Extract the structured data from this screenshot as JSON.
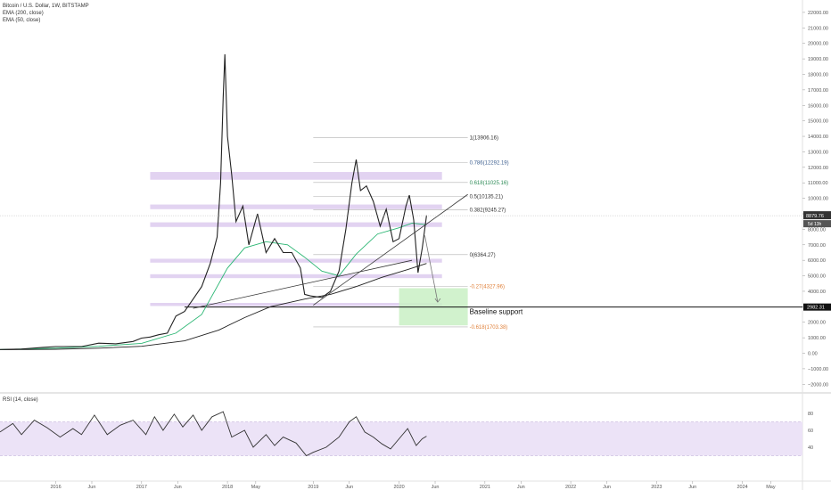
{
  "legend": {
    "title": "Bitcoin / U.S. Dollar, 1W, BITSTAMP",
    "ema200": "EMA (200, close)",
    "ema50": "EMA (50, close)",
    "rsi": "RSI (14, close)"
  },
  "colors": {
    "candle": "#222222",
    "ema50": "#2bb673",
    "ema200": "#222222",
    "zone": "#d8c4ec",
    "green_box": "#c9f0c4",
    "rsi_band": "#ece3f7",
    "rsi_line": "#333333",
    "fib_gray": "#888888",
    "fib_blue": "#3d5f8f",
    "fib_green": "#2e8b57",
    "fib_orange": "#e0803a"
  },
  "price_scale": {
    "ticks": [
      22000,
      21000,
      20000,
      19000,
      18000,
      17000,
      16000,
      15000,
      14000,
      13000,
      12000,
      11000,
      10000,
      9000,
      8000,
      7000,
      6000,
      5000,
      4000,
      3000,
      2000,
      1000,
      0,
      -1000,
      -2000
    ],
    "labels": [
      "22000.00",
      "21000.00",
      "20000.00",
      "19000.00",
      "18000.00",
      "17000.00",
      "16000.00",
      "15000.00",
      "14000.00",
      "13000.00",
      "12000.00",
      "11000.00",
      "10000.00",
      "9000.00",
      "8000.00",
      "7000.00",
      "6000.00",
      "5000.00",
      "4000.00",
      "3000.00",
      "2000.00",
      "1000.00",
      "0.00",
      "−1000.00",
      "−2000.00"
    ],
    "current_price": 8879.76,
    "current_label": "8879.76",
    "countdown_label": "5d 13h",
    "support_label": "2982.31"
  },
  "time_axis": {
    "labels": [
      "2016",
      "Jun",
      "2017",
      "Jun",
      "2018",
      "May",
      "2019",
      "Jun",
      "2020",
      "Jun",
      "2021",
      "Jun",
      "2022",
      "Jun",
      "2023",
      "Jun",
      "2024",
      "May"
    ],
    "positions": [
      2016.0,
      2016.42,
      2017.0,
      2017.42,
      2018.0,
      2018.33,
      2019.0,
      2019.42,
      2020.0,
      2020.42,
      2021.0,
      2021.42,
      2022.0,
      2022.42,
      2023.0,
      2023.42,
      2024.0,
      2024.33
    ]
  },
  "rsi_scale": {
    "ticks": [
      80,
      60,
      40
    ],
    "labels": [
      "80",
      "60",
      "40"
    ],
    "band": [
      30,
      70
    ]
  },
  "fib_levels": [
    {
      "label": "1(13906.16)",
      "value": 13906.16,
      "color": "#333333"
    },
    {
      "label": "0.786(12292.19)",
      "value": 12292.19,
      "color": "#3d5f8f"
    },
    {
      "label": "0.618(11025.16)",
      "value": 11025.16,
      "color": "#2e8b57"
    },
    {
      "label": "0.5(10135.21)",
      "value": 10135.21,
      "color": "#333333"
    },
    {
      "label": "0.382(9245.27)",
      "value": 9245.27,
      "color": "#333333"
    },
    {
      "label": "0(6364.27)",
      "value": 6364.27,
      "color": "#333333"
    },
    {
      "label": "-0.27(4327.96)",
      "value": 4327.96,
      "color": "#e0803a"
    },
    {
      "label": "-0.618(1703.38)",
      "value": 1703.38,
      "color": "#e0803a"
    }
  ],
  "annotation": {
    "baseline_text": "Baseline support",
    "baseline_value": 2982.31
  },
  "chart_data": {
    "type": "line",
    "title": "Bitcoin / U.S. Dollar, 1W, BITSTAMP",
    "xlabel": "",
    "ylabel": "",
    "ylim": [
      -2500,
      22800
    ],
    "xlim": [
      2015.35,
      2024.7
    ],
    "series": [
      {
        "name": "Bitcoin / U.S. Dollar",
        "points": [
          [
            2015.35,
            240
          ],
          [
            2015.6,
            270
          ],
          [
            2015.85,
            380
          ],
          [
            2016.0,
            430
          ],
          [
            2016.3,
            430
          ],
          [
            2016.5,
            650
          ],
          [
            2016.7,
            610
          ],
          [
            2016.9,
            760
          ],
          [
            2017.0,
            980
          ],
          [
            2017.1,
            1050
          ],
          [
            2017.2,
            1200
          ],
          [
            2017.3,
            1300
          ],
          [
            2017.4,
            2400
          ],
          [
            2017.5,
            2700
          ],
          [
            2017.6,
            3500
          ],
          [
            2017.7,
            4300
          ],
          [
            2017.8,
            5800
          ],
          [
            2017.88,
            7500
          ],
          [
            2017.92,
            11000
          ],
          [
            2017.95,
            16500
          ],
          [
            2017.97,
            19300
          ],
          [
            2018.0,
            14000
          ],
          [
            2018.05,
            11500
          ],
          [
            2018.1,
            8500
          ],
          [
            2018.18,
            9500
          ],
          [
            2018.25,
            7000
          ],
          [
            2018.35,
            9000
          ],
          [
            2018.45,
            6500
          ],
          [
            2018.55,
            7400
          ],
          [
            2018.65,
            6500
          ],
          [
            2018.75,
            6500
          ],
          [
            2018.85,
            5500
          ],
          [
            2018.9,
            3800
          ],
          [
            2018.97,
            3700
          ],
          [
            2019.1,
            3600
          ],
          [
            2019.2,
            4000
          ],
          [
            2019.3,
            5300
          ],
          [
            2019.38,
            8000
          ],
          [
            2019.45,
            11000
          ],
          [
            2019.5,
            12500
          ],
          [
            2019.55,
            10500
          ],
          [
            2019.62,
            10800
          ],
          [
            2019.7,
            9800
          ],
          [
            2019.78,
            8200
          ],
          [
            2019.85,
            9300
          ],
          [
            2019.93,
            7200
          ],
          [
            2020.0,
            7400
          ],
          [
            2020.08,
            9500
          ],
          [
            2020.12,
            10200
          ],
          [
            2020.17,
            8600
          ],
          [
            2020.22,
            5200
          ],
          [
            2020.27,
            6800
          ],
          [
            2020.32,
            8900
          ]
        ]
      },
      {
        "name": "EMA (50, close)",
        "points": [
          [
            2015.35,
            240
          ],
          [
            2016.0,
            330
          ],
          [
            2016.5,
            450
          ],
          [
            2017.0,
            640
          ],
          [
            2017.4,
            1300
          ],
          [
            2017.7,
            2500
          ],
          [
            2018.0,
            5500
          ],
          [
            2018.2,
            6800
          ],
          [
            2018.45,
            7200
          ],
          [
            2018.7,
            7000
          ],
          [
            2018.9,
            6200
          ],
          [
            2019.1,
            5300
          ],
          [
            2019.3,
            5000
          ],
          [
            2019.5,
            6400
          ],
          [
            2019.75,
            7700
          ],
          [
            2020.0,
            8100
          ],
          [
            2020.15,
            8400
          ],
          [
            2020.32,
            8300
          ]
        ]
      },
      {
        "name": "EMA (200, close)",
        "points": [
          [
            2015.35,
            230
          ],
          [
            2016.0,
            260
          ],
          [
            2016.5,
            330
          ],
          [
            2017.0,
            450
          ],
          [
            2017.5,
            800
          ],
          [
            2017.9,
            1500
          ],
          [
            2018.2,
            2300
          ],
          [
            2018.5,
            3000
          ],
          [
            2018.9,
            3500
          ],
          [
            2019.2,
            3800
          ],
          [
            2019.5,
            4300
          ],
          [
            2019.8,
            4900
          ],
          [
            2020.1,
            5400
          ],
          [
            2020.32,
            5800
          ]
        ]
      },
      {
        "name": "RSI (14, close)",
        "points": [
          [
            2015.35,
            58
          ],
          [
            2015.5,
            68
          ],
          [
            2015.6,
            55
          ],
          [
            2015.75,
            72
          ],
          [
            2015.9,
            63
          ],
          [
            2016.05,
            52
          ],
          [
            2016.2,
            62
          ],
          [
            2016.3,
            55
          ],
          [
            2016.45,
            78
          ],
          [
            2016.6,
            55
          ],
          [
            2016.75,
            66
          ],
          [
            2016.9,
            72
          ],
          [
            2017.05,
            55
          ],
          [
            2017.15,
            76
          ],
          [
            2017.25,
            60
          ],
          [
            2017.38,
            79
          ],
          [
            2017.48,
            64
          ],
          [
            2017.6,
            78
          ],
          [
            2017.7,
            60
          ],
          [
            2017.82,
            76
          ],
          [
            2017.95,
            82
          ],
          [
            2018.05,
            52
          ],
          [
            2018.2,
            60
          ],
          [
            2018.3,
            40
          ],
          [
            2018.45,
            55
          ],
          [
            2018.55,
            42
          ],
          [
            2018.65,
            52
          ],
          [
            2018.8,
            45
          ],
          [
            2018.92,
            30
          ],
          [
            2019.0,
            34
          ],
          [
            2019.15,
            40
          ],
          [
            2019.3,
            52
          ],
          [
            2019.42,
            70
          ],
          [
            2019.5,
            76
          ],
          [
            2019.6,
            58
          ],
          [
            2019.7,
            52
          ],
          [
            2019.8,
            44
          ],
          [
            2019.9,
            38
          ],
          [
            2020.0,
            50
          ],
          [
            2020.1,
            62
          ],
          [
            2020.2,
            42
          ],
          [
            2020.27,
            50
          ],
          [
            2020.32,
            53
          ]
        ]
      }
    ],
    "zones": [
      [
        11200,
        11700
      ],
      [
        9300,
        9600
      ],
      [
        8150,
        8450
      ],
      [
        5850,
        6100
      ],
      [
        4850,
        5100
      ],
      [
        3050,
        3250
      ]
    ],
    "trendlines": [
      {
        "name": "rising-trendline",
        "from": [
          2019.0,
          3100
        ],
        "to": [
          2020.8,
          10250
        ]
      },
      {
        "name": "ema-trendline",
        "from": [
          2017.6,
          2900
        ],
        "to": [
          2020.15,
          6000
        ]
      },
      {
        "name": "projection-arrow",
        "from": [
          2020.3,
          7600
        ],
        "to": [
          2020.45,
          3300
        ]
      }
    ],
    "green_box": {
      "x": [
        2020.0,
        2020.8
      ],
      "y": [
        1800,
        4200
      ]
    },
    "grid": false,
    "legend_position": "top-left"
  }
}
